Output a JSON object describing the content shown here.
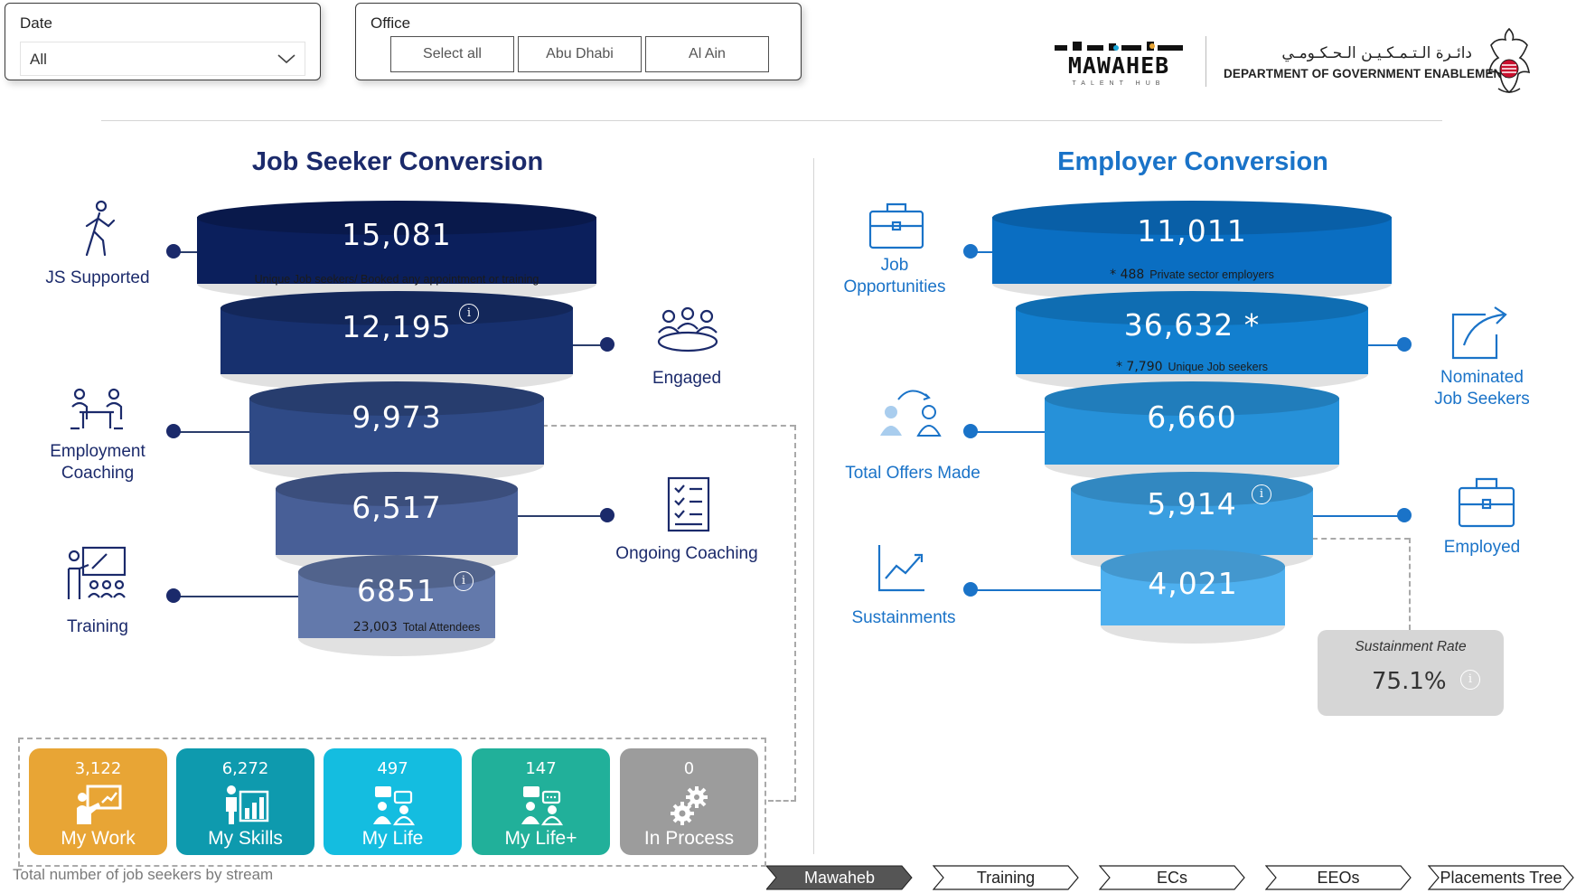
{
  "filters": {
    "date": {
      "label": "Date",
      "value": "All"
    },
    "office": {
      "label": "Office",
      "options": [
        "Select all",
        "Abu Dhabi",
        "Al Ain"
      ]
    }
  },
  "branding": {
    "logo_primary": "MAWAHEB",
    "logo_secondary": "TALENT HUB",
    "dept_arabic": "دائـرة الـتـمـكـيـن الـحـكـومـي",
    "dept_name": "DEPARTMENT OF GOVERNMENT ENABLEMENT"
  },
  "job_seeker": {
    "title": "Job Seeker Conversion",
    "tiers": [
      {
        "value": "15,081",
        "note": "Unique Job seekers/ Booked any appointment or training"
      },
      {
        "value": "12,195"
      },
      {
        "value": "9,973"
      },
      {
        "value": "6,517"
      },
      {
        "value": "6851",
        "note_num": "23,003",
        "note": "Total Attendees"
      }
    ],
    "labels": {
      "js_supported": "JS Supported",
      "engaged": "Engaged",
      "employment_coaching_1": "Employment",
      "employment_coaching_2": "Coaching",
      "ongoing_coaching": "Ongoing Coaching",
      "training": "Training"
    }
  },
  "employer": {
    "title": "Employer Conversion",
    "tiers": [
      {
        "value": "11,011",
        "note_num": "* 488",
        "note": "Private sector employers"
      },
      {
        "value": "36,632 *",
        "note_num": "* 7,790",
        "note": "Unique Job seekers"
      },
      {
        "value": "6,660"
      },
      {
        "value": "5,914"
      },
      {
        "value": "4,021"
      }
    ],
    "labels": {
      "job_opp_1": "Job",
      "job_opp_2": "Opportunities",
      "nominated_1": "Nominated",
      "nominated_2": "Job Seekers",
      "total_offers": "Total Offers Made",
      "employed": "Employed",
      "sustainments": "Sustainments"
    },
    "sustainment": {
      "label": "Sustainment Rate",
      "value": "75.1%"
    }
  },
  "streams": {
    "caption": "Total number of job seekers by stream",
    "items": [
      {
        "value": "3,122",
        "name": "My Work",
        "color": "#e8a535",
        "icon": "presentation-icon"
      },
      {
        "value": "6,272",
        "name": "My Skills",
        "color": "#0e9aae",
        "icon": "skills-chart-icon"
      },
      {
        "value": "497",
        "name": "My Life",
        "color": "#14bde0",
        "icon": "conversation-icon"
      },
      {
        "value": "147",
        "name": "My Life+",
        "color": "#21b09a",
        "icon": "conversation-plus-icon"
      },
      {
        "value": "0",
        "name": "In Process",
        "color": "#9c9c9c",
        "icon": "gears-icon"
      }
    ]
  },
  "nav": {
    "tabs": [
      "Mawaheb",
      "Training",
      "ECs",
      "EEOs",
      "Placements Tree"
    ],
    "active": "Mawaheb"
  },
  "colors": {
    "js_tiers": [
      "#0b1f5c",
      "#17306e",
      "#2f4a86",
      "#485f97",
      "#6379ab"
    ],
    "emp_tiers": [
      "#0a6ec2",
      "#127fcf",
      "#2691d9",
      "#3a9ee0",
      "#4eb0ef"
    ]
  }
}
